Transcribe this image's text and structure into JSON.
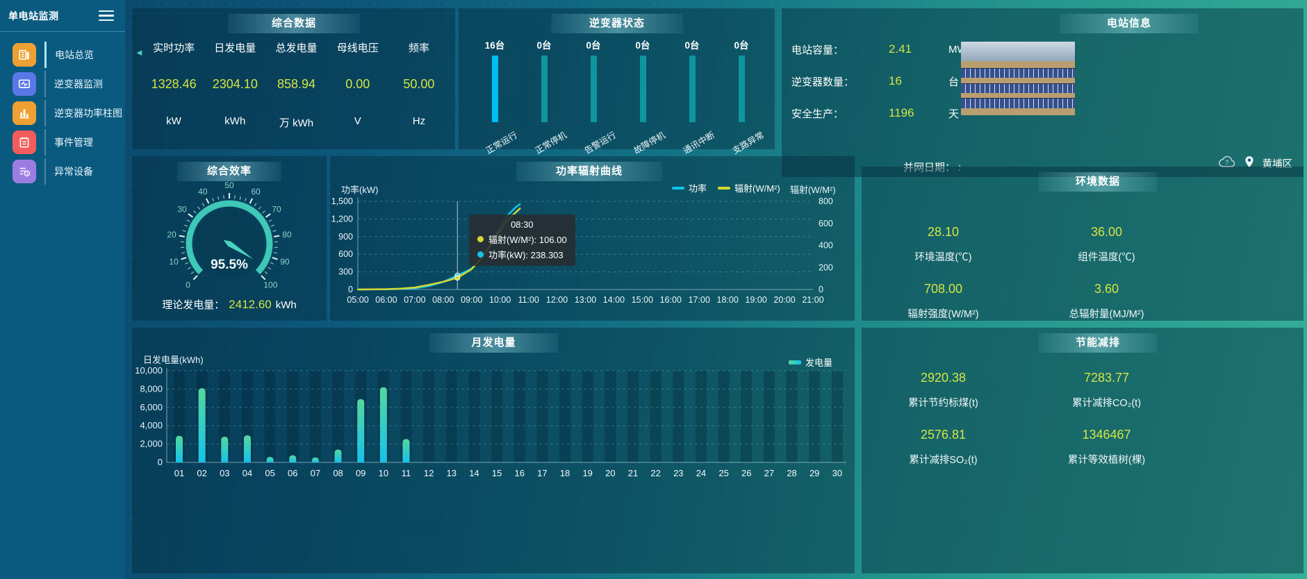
{
  "sidebar": {
    "title": "单电站监测",
    "items": [
      {
        "label": "电站总览",
        "icon": "station-overview-icon",
        "color": "#efa033",
        "active": true
      },
      {
        "label": "逆变器监测",
        "icon": "inverter-monitor-icon",
        "color": "#5a77e6",
        "active": false
      },
      {
        "label": "逆变器功率柱图",
        "icon": "inverter-power-bars-icon",
        "color": "#efa033",
        "active": false
      },
      {
        "label": "事件管理",
        "icon": "event-manage-icon",
        "color": "#f25c5c",
        "active": false
      },
      {
        "label": "异常设备",
        "icon": "abnormal-device-icon",
        "color": "#9b7de2",
        "active": false
      }
    ]
  },
  "summary": {
    "title": "综合数据",
    "metrics": [
      {
        "label": "实时功率",
        "value": "1328.46",
        "unit": "kW"
      },
      {
        "label": "日发电量",
        "value": "2304.10",
        "unit": "kWh"
      },
      {
        "label": "总发电量",
        "value": "858.94",
        "unit": "万 kWh"
      },
      {
        "label": "母线电压",
        "value": "0.00",
        "unit": "V"
      },
      {
        "label": "频率",
        "value": "50.00",
        "unit": "Hz"
      }
    ]
  },
  "inverter_status": {
    "title": "逆变器状态",
    "items": [
      {
        "count": "16台",
        "label": "正常运行",
        "bar_color": "#00bef2"
      },
      {
        "count": "0台",
        "label": "正常停机",
        "bar_color": "#0d96a0"
      },
      {
        "count": "0台",
        "label": "告警运行",
        "bar_color": "#0d96a0"
      },
      {
        "count": "0台",
        "label": "故障停机",
        "bar_color": "#0d96a0"
      },
      {
        "count": "0台",
        "label": "通讯中断",
        "bar_color": "#0d96a0"
      },
      {
        "count": "0台",
        "label": "支路异常",
        "bar_color": "#0d96a0"
      }
    ]
  },
  "station_info": {
    "title": "电站信息",
    "rows": [
      {
        "label": "电站容量：",
        "value": "2.41",
        "unit": "MW"
      },
      {
        "label": "逆变器数量：",
        "value": "16",
        "unit": "台"
      },
      {
        "label": "安全生产：",
        "value": "1196",
        "unit": "天"
      }
    ],
    "grid_date_label": "并网日期： :",
    "location": "黄埔区"
  },
  "efficiency": {
    "title": "综合效率",
    "value": 95.5,
    "min": 0,
    "max": 100,
    "display": "95.5%",
    "theory_label": "理论发电量：",
    "theory_value": "2412.60",
    "theory_unit": "kWh"
  },
  "environment": {
    "title": "环境数据",
    "cells": [
      {
        "value": "28.10",
        "label": "环境温度(℃)"
      },
      {
        "value": "36.00",
        "label": "组件温度(℃)"
      },
      {
        "value": "708.00",
        "label": "辐射强度(W/M²)"
      },
      {
        "value": "3.60",
        "label": "总辐射量(MJ/M²)"
      }
    ]
  },
  "saving": {
    "title": "节能减排",
    "cells": [
      {
        "value": "2920.38",
        "label": "累计节约标煤(t)"
      },
      {
        "value": "7283.77",
        "label": "累计减排CO₂(t)"
      },
      {
        "value": "2576.81",
        "label": "累计减排SO₂(t)"
      },
      {
        "value": "1346467",
        "label": "累计等效植树(棵)"
      }
    ]
  },
  "chart_data": [
    {
      "id": "power_radiation_curve",
      "type": "line",
      "title": "功率辐射曲线",
      "left_axis": {
        "label": "功率(kW)",
        "ticks": [
          "0",
          "300",
          "600",
          "900",
          "1,200",
          "1,500"
        ],
        "max": 1500
      },
      "right_axis": {
        "label": "辐射(W/M²)",
        "ticks": [
          "0",
          "200",
          "400",
          "600",
          "800"
        ],
        "max": 800
      },
      "x_range": [
        5,
        21
      ],
      "x_labels": [
        "05:00",
        "06:00",
        "07:00",
        "08:00",
        "09:00",
        "10:00",
        "11:00",
        "12:00",
        "13:00",
        "14:00",
        "15:00",
        "16:00",
        "17:00",
        "18:00",
        "19:00",
        "20:00",
        "21:00"
      ],
      "legend_position": "top-right",
      "grid": true,
      "series": [
        {
          "name": "功率",
          "color": "#12c4ef",
          "axis": "left",
          "points": [
            [
              5,
              0
            ],
            [
              5.5,
              1
            ],
            [
              6,
              3
            ],
            [
              6.5,
              8
            ],
            [
              7,
              20
            ],
            [
              7.5,
              60
            ],
            [
              8,
              130
            ],
            [
              8.5,
              238.303
            ],
            [
              9,
              354
            ],
            [
              9.4,
              560
            ],
            [
              9.8,
              890
            ],
            [
              10.2,
              1230
            ],
            [
              10.55,
              1400
            ],
            [
              10.7,
              1450
            ]
          ]
        },
        {
          "name": "辐射(W/M²)",
          "color": "#d6d92e",
          "axis": "right",
          "points": [
            [
              5,
              0
            ],
            [
              5.5,
              1
            ],
            [
              6,
              3
            ],
            [
              6.5,
              8
            ],
            [
              7,
              18
            ],
            [
              7.5,
              42
            ],
            [
              8,
              70
            ],
            [
              8.5,
              106
            ],
            [
              9,
              185
            ],
            [
              9.4,
              300
            ],
            [
              9.8,
              460
            ],
            [
              10.2,
              610
            ],
            [
              10.55,
              700
            ],
            [
              10.7,
              735
            ]
          ]
        }
      ],
      "tooltip": {
        "time": "08:30",
        "x_hour": 8.5,
        "rows": [
          {
            "color": "#d6d92e",
            "text": "辐射(W/M²): 106.00"
          },
          {
            "color": "#12c4ef",
            "text": "功率(kW): 238.303"
          }
        ]
      }
    },
    {
      "id": "monthly_daily_generation",
      "type": "bar",
      "title": "月发电量",
      "legend": "发电量",
      "y_axis": {
        "label": "日发电量(kWh)",
        "ticks": [
          "0",
          "2,000",
          "4,000",
          "6,000",
          "8,000",
          "10,000"
        ],
        "max": 10000
      },
      "categories": [
        "01",
        "02",
        "03",
        "04",
        "05",
        "06",
        "07",
        "08",
        "09",
        "10",
        "11",
        "12",
        "13",
        "14",
        "15",
        "16",
        "17",
        "18",
        "19",
        "20",
        "21",
        "22",
        "23",
        "24",
        "25",
        "26",
        "27",
        "28",
        "29",
        "30"
      ],
      "values": [
        2900,
        8100,
        2800,
        2950,
        600,
        780,
        550,
        1400,
        6900,
        8200,
        2550,
        0,
        0,
        0,
        0,
        0,
        0,
        0,
        0,
        0,
        0,
        0,
        0,
        0,
        0,
        0,
        0,
        0,
        0,
        0
      ],
      "bar_colors": [
        "#55d79e",
        "#13c3eb"
      ],
      "grid": true
    },
    {
      "id": "inverter_status_bars",
      "type": "bar",
      "title": "逆变器状态",
      "categories": [
        "正常运行",
        "正常停机",
        "告警运行",
        "故障停机",
        "通讯中断",
        "支路异常"
      ],
      "values": [
        16,
        0,
        0,
        0,
        0,
        0
      ],
      "unit": "台"
    }
  ]
}
